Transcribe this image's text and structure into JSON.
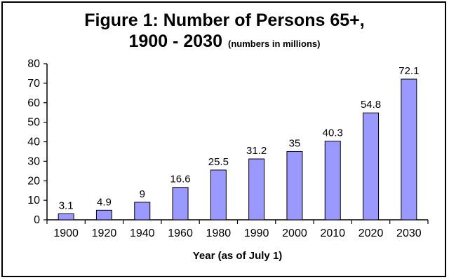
{
  "chart_data": {
    "type": "bar",
    "title_line1": "Figure 1: Number of Persons 65+,",
    "title_line2": "1900 - 2030",
    "subtitle": "(numbers in millions)",
    "xlabel": "Year (as of July 1)",
    "ylabel": "",
    "categories": [
      "1900",
      "1920",
      "1940",
      "1960",
      "1980",
      "1990",
      "2000",
      "2010",
      "2020",
      "2030"
    ],
    "values": [
      3.1,
      4.9,
      9,
      16.6,
      25.5,
      31.2,
      35,
      40.3,
      54.8,
      72.1
    ],
    "value_labels": [
      "3.1",
      "4.9",
      "9",
      "16.6",
      "25.5",
      "31.2",
      "35",
      "40.3",
      "54.8",
      "72.1"
    ],
    "ylim": [
      0,
      80
    ],
    "yticks": [
      0,
      10,
      20,
      30,
      40,
      50,
      60,
      70,
      80
    ],
    "grid": false,
    "legend": "none",
    "colors": {
      "bar_fill": "#9999ff",
      "bar_stroke": "#000000"
    }
  }
}
